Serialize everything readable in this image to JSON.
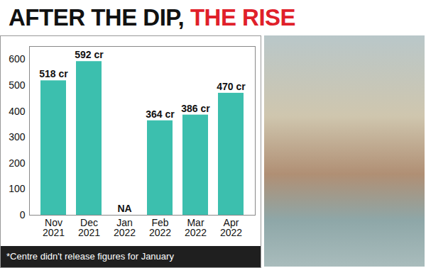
{
  "chart_data": {
    "type": "bar",
    "title": "AFTER THE DIP, THE RISE",
    "categories": [
      "Nov 2021",
      "Dec 2021",
      "Jan 2022",
      "Feb 2022",
      "Mar 2022",
      "Apr 2022"
    ],
    "values": [
      518,
      592,
      null,
      364,
      386,
      470
    ],
    "value_labels": [
      "518 cr",
      "592 cr",
      "NA",
      "364 cr",
      "386 cr",
      "470 cr"
    ],
    "color": "#3cbfae",
    "ylim": [
      0,
      650
    ],
    "yticks": [
      0,
      100,
      200,
      300,
      400,
      500,
      600
    ],
    "grid": false,
    "data_labels": true,
    "caption": "*Centre didn't release figures for January"
  }
}
